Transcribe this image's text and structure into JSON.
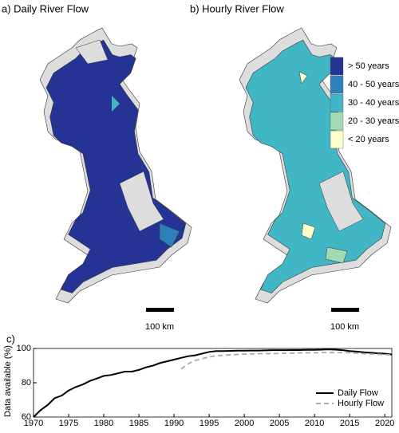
{
  "maps": {
    "panels": [
      {
        "title": "a) Daily River Flow",
        "scale_label": "100 km"
      },
      {
        "title": "b) Hourly River Flow",
        "scale_label": "100 km"
      }
    ],
    "legend": [
      {
        "label": "> 50 years",
        "color": "#253494"
      },
      {
        "label": "40 - 50 years",
        "color": "#2c7fb8"
      },
      {
        "label": "30 - 40 years",
        "color": "#41b6c4"
      },
      {
        "label": "20 - 30 years",
        "color": "#a1dab4"
      },
      {
        "label": "< 20 years",
        "color": "#ffffcc"
      }
    ]
  },
  "chart_data": {
    "type": "line",
    "title": "c)",
    "y_label": "Data available (%)",
    "x": [
      1970,
      1971,
      1972,
      1973,
      1974,
      1975,
      1976,
      1977,
      1978,
      1979,
      1980,
      1981,
      1982,
      1983,
      1984,
      1985,
      1986,
      1987,
      1988,
      1989,
      1990,
      1991,
      1992,
      1993,
      1994,
      1995,
      1996,
      1997,
      1998,
      1999,
      2000,
      2001,
      2002,
      2003,
      2004,
      2005,
      2006,
      2007,
      2008,
      2009,
      2010,
      2011,
      2012,
      2013,
      2014,
      2015,
      2016,
      2017,
      2018,
      2019,
      2020,
      2021
    ],
    "series": [
      {
        "name": "Daily Flow",
        "color": "#000000",
        "dashed": false,
        "values": [
          60,
          64,
          67,
          71,
          72.5,
          75.5,
          77.5,
          79,
          81,
          82.5,
          84,
          84.5,
          85.5,
          86.5,
          86.5,
          87.5,
          89,
          90,
          91.5,
          92.5,
          93.5,
          94.5,
          95.5,
          96,
          97,
          98,
          98.5,
          98.5,
          98.6,
          98.7,
          98.7,
          98.8,
          98.8,
          98.9,
          99,
          99,
          99,
          99.1,
          99.1,
          99.2,
          99.2,
          99.3,
          99.5,
          99.3,
          99,
          98.5,
          98.2,
          97.8,
          97.5,
          97.2,
          97,
          96.5
        ]
      },
      {
        "name": "Hourly Flow",
        "color": "#aaaaaa",
        "dashed": true,
        "values": [
          null,
          null,
          null,
          null,
          null,
          null,
          null,
          null,
          null,
          null,
          null,
          null,
          null,
          null,
          null,
          null,
          null,
          null,
          null,
          null,
          null,
          88,
          91,
          93,
          94,
          95,
          95.8,
          96,
          96.3,
          96.5,
          96.7,
          96.8,
          96.9,
          97,
          97,
          97.1,
          97.2,
          97.3,
          97.4,
          97.5,
          97.5,
          97.6,
          97.6,
          97.7,
          97.6,
          97.5,
          97.3,
          97,
          96.8,
          96.6,
          96.4,
          96.2
        ]
      }
    ],
    "xlim": [
      1970,
      2021
    ],
    "ylim": [
      60,
      100
    ],
    "xticks": [
      1970,
      1975,
      1980,
      1985,
      1990,
      1995,
      2000,
      2005,
      2010,
      2015,
      2020
    ],
    "yticks": [
      60,
      80,
      100
    ],
    "legend_position": "lower right"
  }
}
